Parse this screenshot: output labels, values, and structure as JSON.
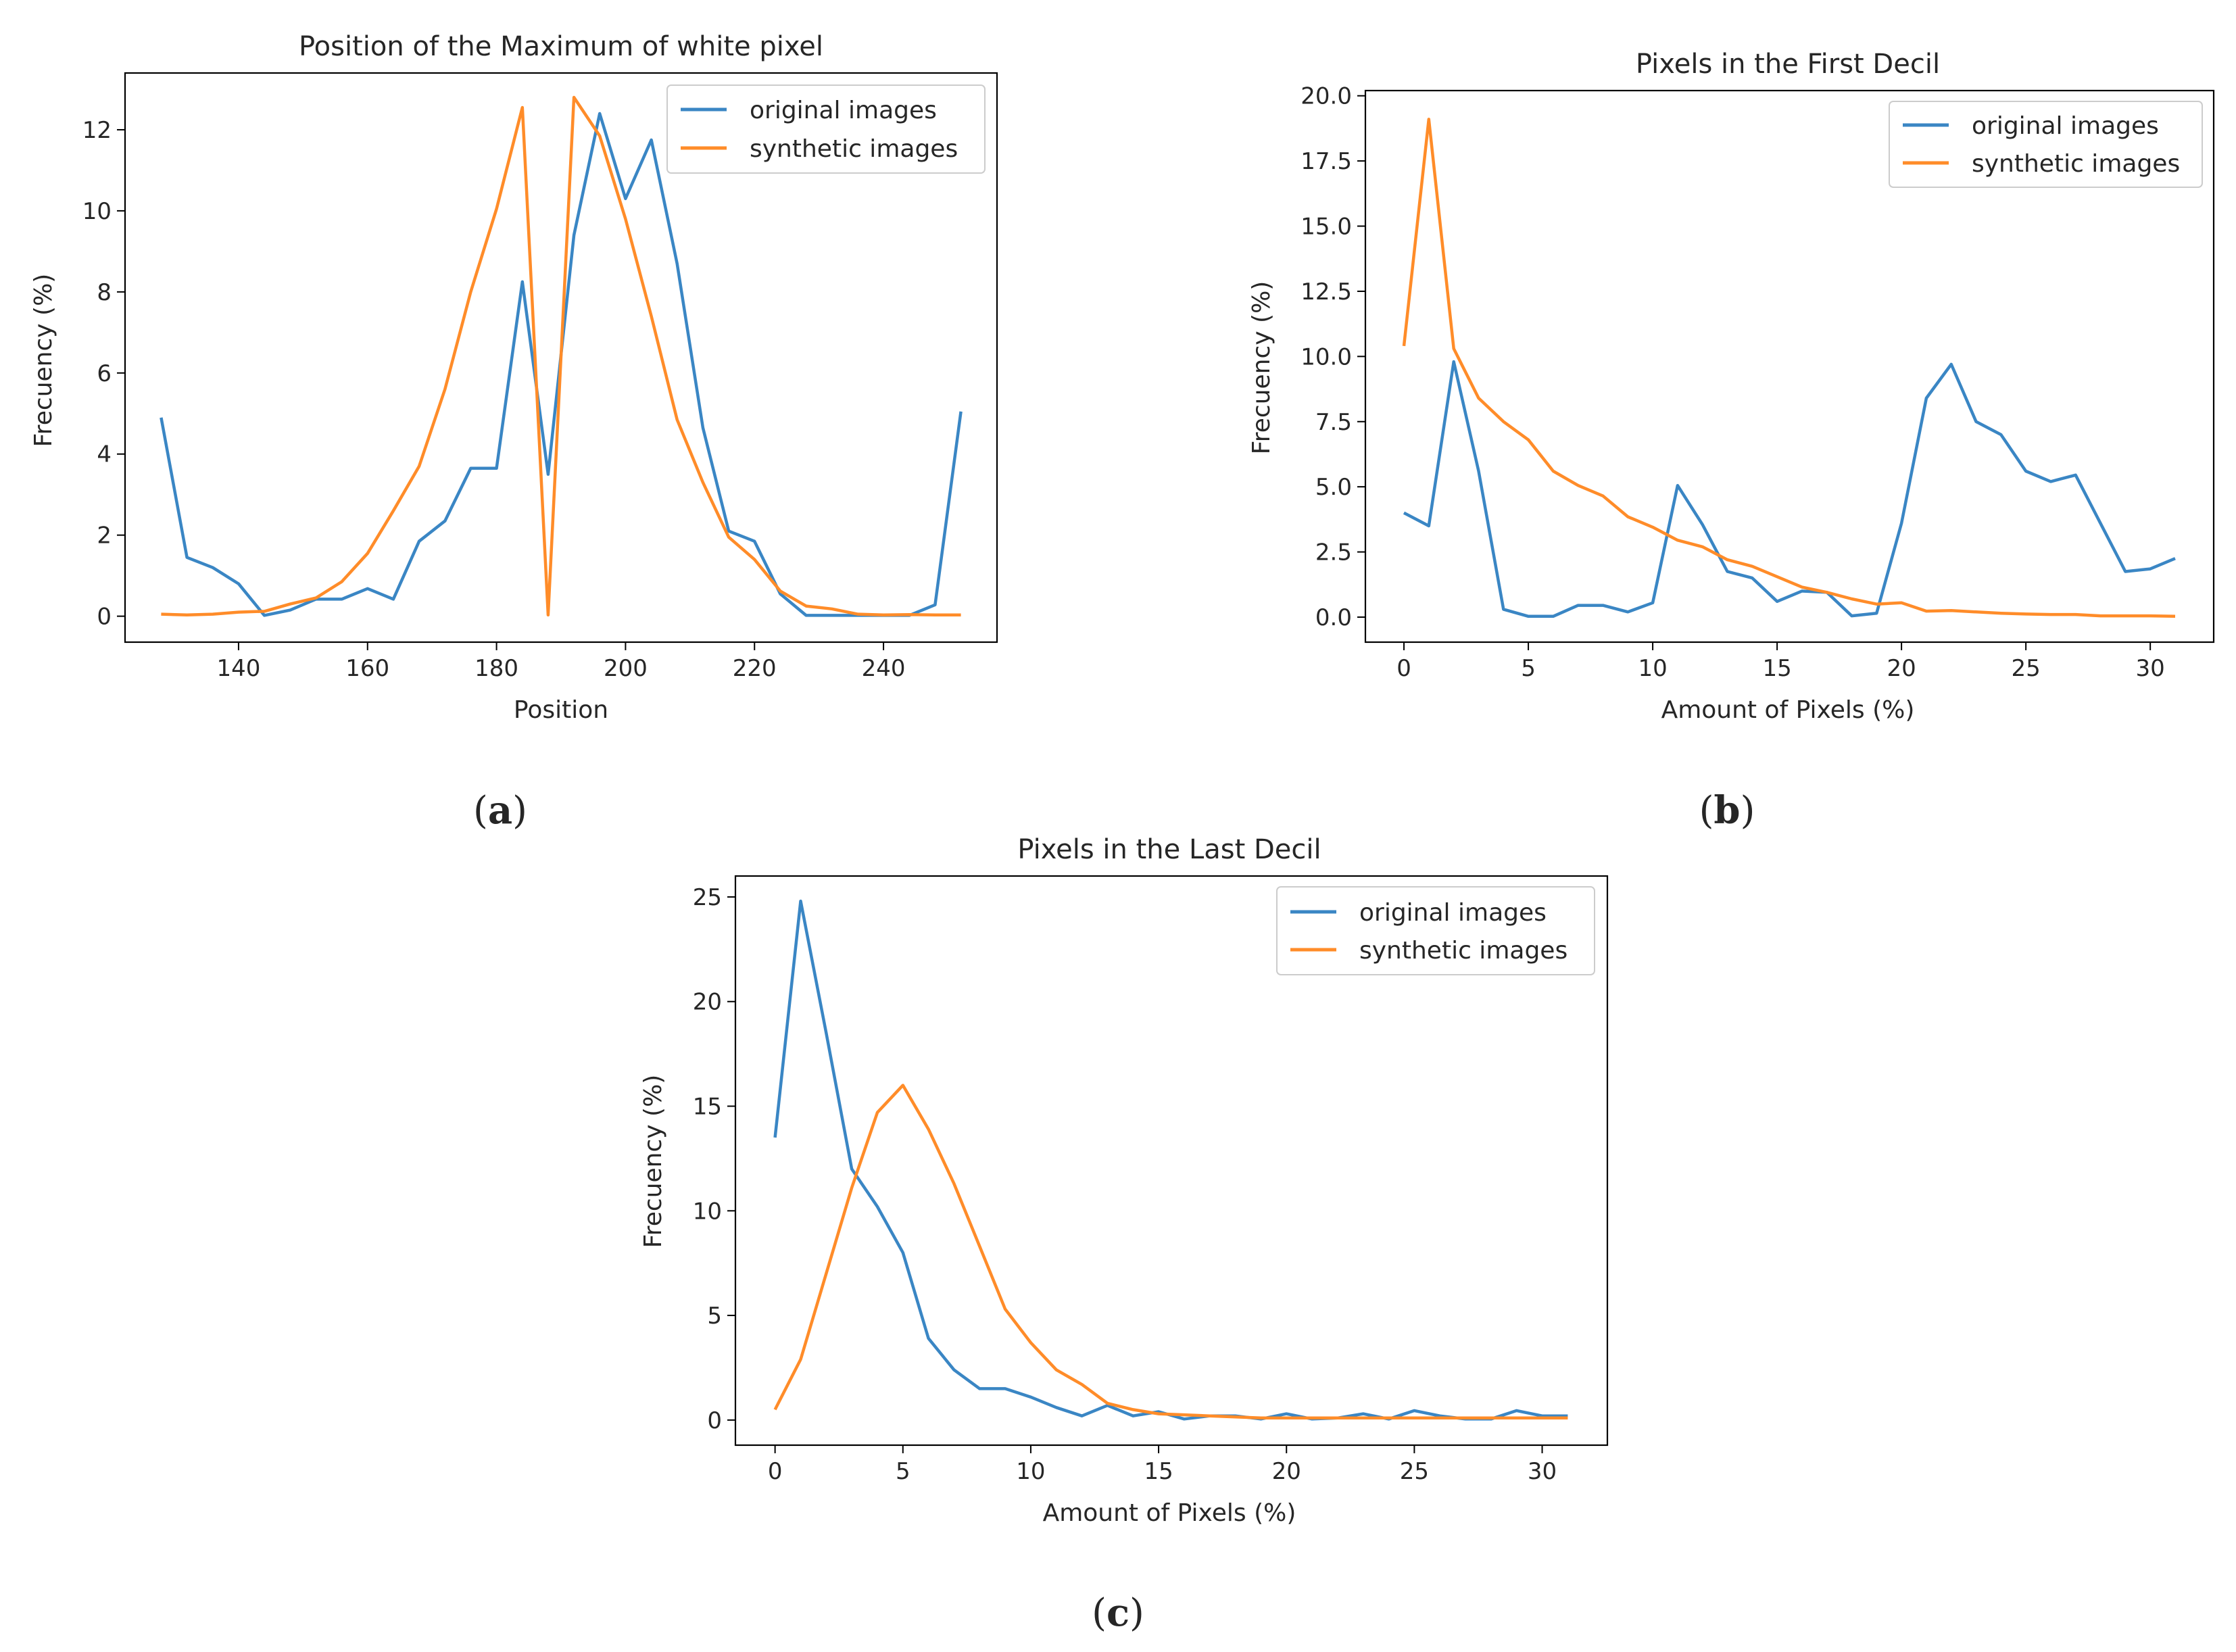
{
  "figure": {
    "panel_labels": [
      "a",
      "b",
      "c"
    ],
    "colors": {
      "original": "#3a86c4",
      "synthetic": "#ff8c29",
      "axis": "#000000",
      "text": "#262626"
    }
  },
  "chart_data": [
    {
      "type": "line",
      "panel": "a",
      "title": "Position of the Maximum of white pixel",
      "xlabel": "Position",
      "ylabel": "Frecuency (%)",
      "xlim": [
        122.4,
        257.6
      ],
      "ylim": [
        -0.64,
        13.4
      ],
      "xticks": [
        140,
        160,
        180,
        200,
        220,
        240
      ],
      "yticks": [
        0,
        2,
        4,
        6,
        8,
        10,
        12
      ],
      "legend": {
        "location": "upper right",
        "entries": [
          "original images",
          "synthetic images"
        ]
      },
      "series": [
        {
          "name": "original images",
          "x": [
            128,
            132,
            136,
            140,
            144,
            148,
            152,
            156,
            160,
            164,
            168,
            172,
            176,
            180,
            184,
            188,
            192,
            196,
            200,
            204,
            208,
            212,
            216,
            220,
            224,
            228,
            232,
            236,
            240,
            244,
            248,
            252
          ],
          "y": [
            4.9,
            1.45,
            1.2,
            0.8,
            0.02,
            0.15,
            0.42,
            0.42,
            0.68,
            0.42,
            1.85,
            2.35,
            3.65,
            3.65,
            8.25,
            3.5,
            9.4,
            12.4,
            10.3,
            11.75,
            8.7,
            4.65,
            2.1,
            1.85,
            0.55,
            0.02,
            0.02,
            0.02,
            0.02,
            0.02,
            0.28,
            5.05
          ]
        },
        {
          "name": "synthetic images",
          "x": [
            128,
            132,
            136,
            140,
            144,
            148,
            152,
            156,
            160,
            164,
            168,
            172,
            176,
            180,
            184,
            188,
            192,
            196,
            200,
            204,
            208,
            212,
            216,
            220,
            224,
            228,
            232,
            236,
            240,
            244,
            248,
            252
          ],
          "y": [
            0.05,
            0.03,
            0.05,
            0.1,
            0.12,
            0.3,
            0.45,
            0.85,
            1.55,
            2.6,
            3.7,
            5.6,
            8.0,
            10.05,
            12.55,
            0.03,
            12.8,
            11.85,
            9.8,
            7.4,
            4.85,
            3.3,
            1.95,
            1.4,
            0.62,
            0.25,
            0.18,
            0.05,
            0.03,
            0.04,
            0.03,
            0.03
          ]
        }
      ]
    },
    {
      "type": "line",
      "panel": "b",
      "title": "Pixels in the First Decil",
      "xlabel": "Amount of Pixels (%)",
      "ylabel": "Frecuency (%)",
      "xlim": [
        -1.55,
        32.55
      ],
      "ylim": [
        -0.96,
        20.2
      ],
      "xticks": [
        0,
        5,
        10,
        15,
        20,
        25,
        30
      ],
      "yticks": [
        0.0,
        2.5,
        5.0,
        7.5,
        10.0,
        12.5,
        15.0,
        17.5,
        20.0
      ],
      "ytick_labels": [
        "0.0",
        "2.5",
        "5.0",
        "7.5",
        "10.0",
        "12.5",
        "15.0",
        "17.5",
        "20.0"
      ],
      "legend": {
        "location": "upper right",
        "entries": [
          "original images",
          "synthetic images"
        ]
      },
      "series": [
        {
          "name": "original images",
          "x": [
            0,
            1,
            2,
            3,
            4,
            5,
            6,
            7,
            8,
            9,
            10,
            11,
            12,
            13,
            14,
            15,
            16,
            17,
            18,
            19,
            20,
            21,
            22,
            23,
            24,
            25,
            26,
            27,
            28,
            29,
            30,
            31
          ],
          "y": [
            4.0,
            3.5,
            9.8,
            5.6,
            0.3,
            0.03,
            0.03,
            0.45,
            0.45,
            0.2,
            0.55,
            5.05,
            3.55,
            1.75,
            1.5,
            0.6,
            1.0,
            0.95,
            0.05,
            0.15,
            3.6,
            8.4,
            9.7,
            7.5,
            7.0,
            5.6,
            5.2,
            5.45,
            3.6,
            1.75,
            1.85,
            2.25
          ]
        },
        {
          "name": "synthetic images",
          "x": [
            0,
            1,
            2,
            3,
            4,
            5,
            6,
            7,
            8,
            9,
            10,
            11,
            12,
            13,
            14,
            15,
            16,
            17,
            18,
            19,
            20,
            21,
            22,
            23,
            24,
            25,
            26,
            27,
            28,
            29,
            30,
            31
          ],
          "y": [
            10.4,
            19.1,
            10.3,
            8.4,
            7.5,
            6.8,
            5.6,
            5.05,
            4.65,
            3.85,
            3.45,
            2.95,
            2.7,
            2.2,
            1.95,
            1.55,
            1.15,
            0.95,
            0.7,
            0.5,
            0.55,
            0.23,
            0.25,
            0.2,
            0.15,
            0.12,
            0.1,
            0.1,
            0.05,
            0.05,
            0.05,
            0.03
          ]
        }
      ]
    },
    {
      "type": "line",
      "panel": "c",
      "title": "Pixels in the Last Decil",
      "xlabel": "Amount of Pixels (%)",
      "ylabel": "Frecuency (%)",
      "xlim": [
        -1.55,
        32.55
      ],
      "ylim": [
        -1.2,
        26.0
      ],
      "xticks": [
        0,
        5,
        10,
        15,
        20,
        25,
        30
      ],
      "yticks": [
        0,
        5,
        10,
        15,
        20,
        25
      ],
      "legend": {
        "location": "upper right",
        "entries": [
          "original images",
          "synthetic images"
        ]
      },
      "series": [
        {
          "name": "original images",
          "x": [
            0,
            1,
            2,
            3,
            4,
            5,
            6,
            7,
            8,
            9,
            10,
            11,
            12,
            13,
            14,
            15,
            16,
            17,
            18,
            19,
            20,
            21,
            22,
            23,
            24,
            25,
            26,
            27,
            28,
            29,
            30,
            31
          ],
          "y": [
            13.5,
            24.8,
            18.5,
            12.0,
            10.2,
            8.0,
            3.9,
            2.4,
            1.5,
            1.5,
            1.1,
            0.6,
            0.2,
            0.7,
            0.2,
            0.4,
            0.05,
            0.2,
            0.2,
            0.05,
            0.3,
            0.05,
            0.1,
            0.3,
            0.05,
            0.45,
            0.2,
            0.05,
            0.05,
            0.45,
            0.2,
            0.2
          ]
        },
        {
          "name": "synthetic images",
          "x": [
            0,
            1,
            2,
            3,
            4,
            5,
            6,
            7,
            8,
            9,
            10,
            11,
            12,
            13,
            14,
            15,
            16,
            17,
            18,
            19,
            20,
            21,
            22,
            23,
            24,
            25,
            26,
            27,
            28,
            29,
            30,
            31
          ],
          "y": [
            0.5,
            2.9,
            7.0,
            11.1,
            14.7,
            16.0,
            13.9,
            11.3,
            8.3,
            5.3,
            3.7,
            2.4,
            1.7,
            0.8,
            0.5,
            0.3,
            0.25,
            0.2,
            0.15,
            0.1,
            0.1,
            0.1,
            0.1,
            0.1,
            0.1,
            0.1,
            0.1,
            0.1,
            0.1,
            0.1,
            0.1,
            0.1
          ]
        }
      ]
    }
  ]
}
